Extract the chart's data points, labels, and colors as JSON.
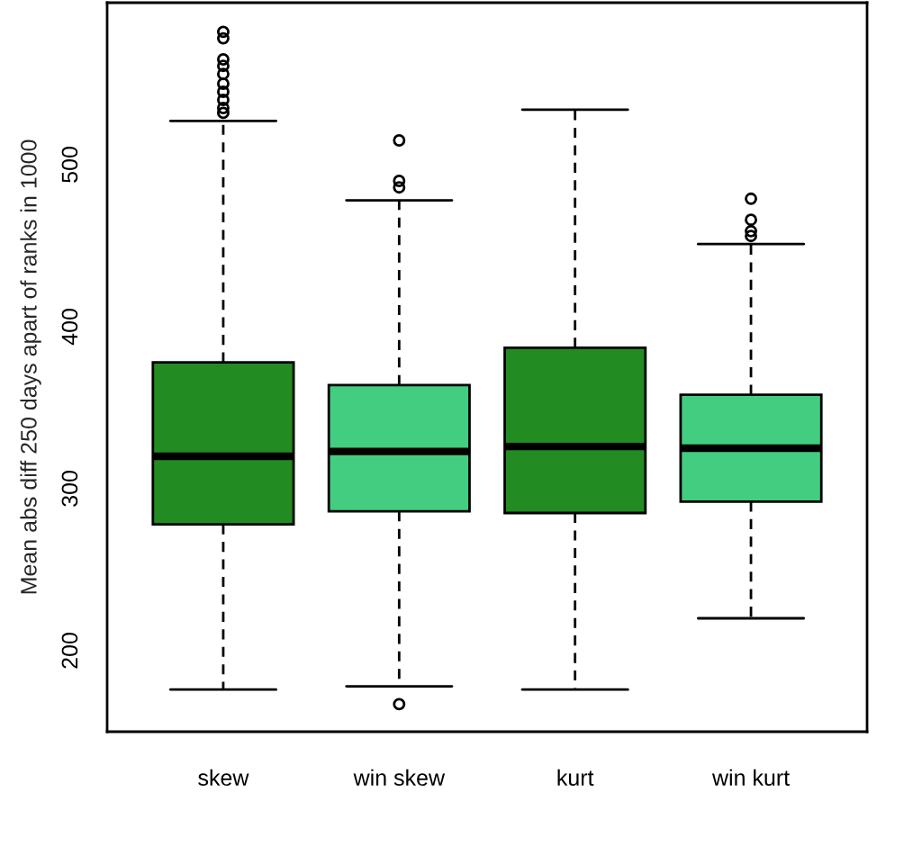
{
  "chart_data": {
    "type": "box",
    "ylabel": "Mean abs diff 250 days apart of ranks in 1000",
    "categories": [
      "skew",
      "win skew",
      "kurt",
      "win kurt"
    ],
    "colors": [
      "#228b22",
      "#43cd80",
      "#228b22",
      "#43cd80"
    ],
    "boxes": [
      {
        "low": 176,
        "q1": 278,
        "median": 320,
        "q3": 378,
        "high": 527,
        "outliers": [
          582,
          578,
          565,
          561,
          556,
          550,
          545,
          540,
          535,
          532
        ]
      },
      {
        "low": 178,
        "q1": 286,
        "median": 323,
        "q3": 364,
        "high": 478,
        "outliers": [
          515,
          490,
          486,
          167
        ]
      },
      {
        "low": 176,
        "q1": 285,
        "median": 326,
        "q3": 387,
        "high": 534
      },
      {
        "low": 220,
        "q1": 292,
        "median": 325,
        "q3": 358,
        "high": 451,
        "outliers": [
          479,
          466,
          459,
          456
        ]
      }
    ],
    "ylim": [
      150,
      600
    ],
    "yticks": [
      200,
      300,
      400,
      500
    ],
    "grid": false,
    "legend": false
  }
}
